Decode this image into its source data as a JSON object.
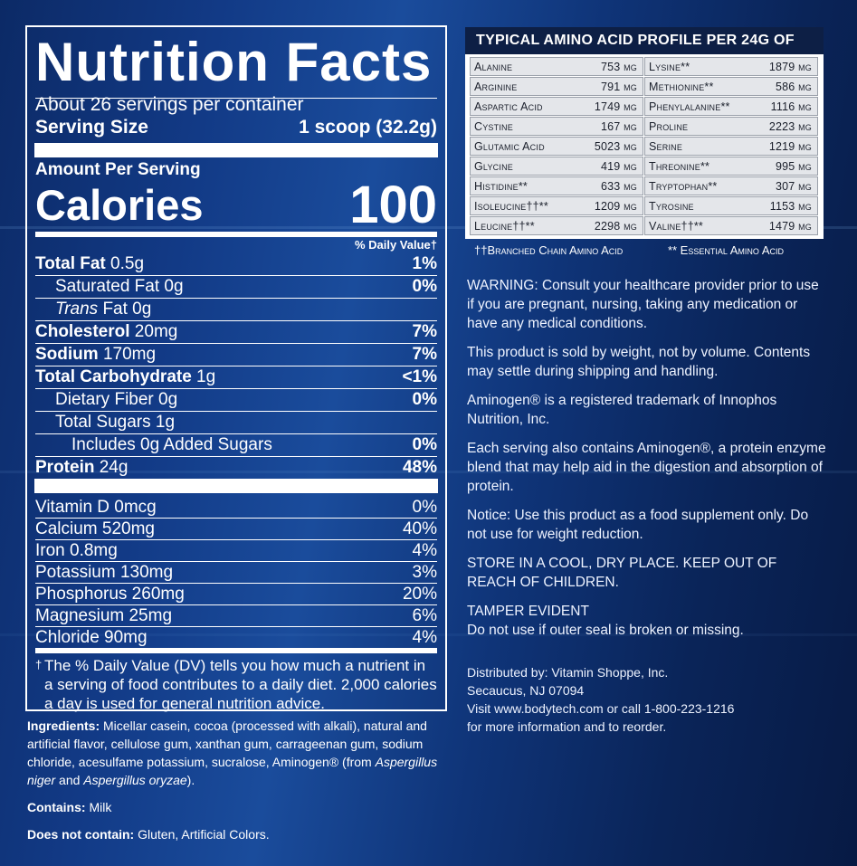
{
  "nutrition": {
    "title": "Nutrition Facts",
    "servings": "About 26 servings per container",
    "serving_size_label": "Serving Size",
    "serving_size_value": "1 scoop (32.2g)",
    "amount_per_serving": "Amount Per Serving",
    "calories_label": "Calories",
    "calories_value": "100",
    "dv_header": "% Daily Value†",
    "nutrients": [
      {
        "bold": "Total Fat",
        "amount": " 0.5g",
        "dv": "1%"
      },
      {
        "bold": "",
        "amount": "Saturated Fat 0g",
        "dv": "0%"
      },
      {
        "italic": "Trans",
        "amount": " Fat 0g",
        "dv": ""
      },
      {
        "bold": "Cholesterol",
        "amount": " 20mg",
        "dv": "7%"
      },
      {
        "bold": "Sodium",
        "amount": " 170mg",
        "dv": "7%"
      },
      {
        "bold": "Total Carbohydrate",
        "amount": " 1g",
        "dv": "<1%"
      },
      {
        "bold": "",
        "amount": "Dietary Fiber 0g",
        "dv": "0%"
      },
      {
        "bold": "",
        "amount": "Total Sugars 1g",
        "dv": ""
      },
      {
        "bold": "",
        "amount": "Includes 0g Added Sugars",
        "dv": "0%"
      },
      {
        "bold": "Protein",
        "amount": " 24g",
        "dv": "48%"
      }
    ],
    "vitamins": [
      {
        "label": "Vitamin D 0mcg",
        "dv": "0%"
      },
      {
        "label": "Calcium 520mg",
        "dv": "40%"
      },
      {
        "label": "Iron 0.8mg",
        "dv": "4%"
      },
      {
        "label": "Potassium 130mg",
        "dv": "3%"
      },
      {
        "label": "Phosphorus 260mg",
        "dv": "20%"
      },
      {
        "label": "Magnesium 25mg",
        "dv": "6%"
      },
      {
        "label": "Chloride 90mg",
        "dv": "4%"
      }
    ],
    "footnote_mark": "†",
    "footnote": "The % Daily Value (DV) tells you how much a nutrient in a serving of food contributes to a daily diet. 2,000 calories a day is used for general nutrition advice."
  },
  "ingredients": {
    "label": "Ingredients:",
    "text": " Micellar casein, cocoa (processed with alkali), natural and artificial flavor, cellulose gum, xanthan gum, carrageenan gum, sodium chloride, acesulfame potassium, sucralose, Aminogen® (from ",
    "italic1": "Aspergillus niger",
    "and": " and ",
    "italic2": "Aspergillus oryzae",
    "end": ").",
    "contains_label": "Contains:",
    "contains_value": " Milk",
    "not_contain_label": "Does not contain:",
    "not_contain_value": " Gluten, Artificial Colors."
  },
  "amino": {
    "title": "TYPICAL AMINO ACID PROFILE PER 24G OF PROTEIN",
    "rows": [
      [
        {
          "name": "Alanine",
          "val": "753 mg"
        },
        {
          "name": "Lysine**",
          "val": "1879 mg"
        }
      ],
      [
        {
          "name": "Arginine",
          "val": "791 mg"
        },
        {
          "name": "Methionine**",
          "val": "586 mg"
        }
      ],
      [
        {
          "name": "Aspartic Acid",
          "val": "1749 mg"
        },
        {
          "name": "Phenylalanine**",
          "val": "1116 mg"
        }
      ],
      [
        {
          "name": "Cystine",
          "val": "167 mg"
        },
        {
          "name": "Proline",
          "val": "2223 mg"
        }
      ],
      [
        {
          "name": "Glutamic Acid",
          "val": "5023 mg"
        },
        {
          "name": "Serine",
          "val": "1219 mg"
        }
      ],
      [
        {
          "name": "Glycine",
          "val": "419 mg"
        },
        {
          "name": "Threonine**",
          "val": "995 mg"
        }
      ],
      [
        {
          "name": "Histidine**",
          "val": "633 mg"
        },
        {
          "name": "Tryptophan**",
          "val": "307 mg"
        }
      ],
      [
        {
          "name": "Isoleucine††**",
          "val": "1209 mg"
        },
        {
          "name": "Tyrosine",
          "val": "1153 mg"
        }
      ],
      [
        {
          "name": "Leucine††**",
          "val": "2298 mg"
        },
        {
          "name": "Valine††**",
          "val": "1479 mg"
        }
      ]
    ],
    "foot_left": "††Branched Chain Amino Acid",
    "foot_right": "** Essential Amino Acid"
  },
  "notices": [
    "WARNING: Consult your healthcare provider prior to use if you are pregnant, nursing, taking any medication or have any medical conditions.",
    "This product is sold by weight, not by volume. Contents may settle during shipping and handling.",
    "Aminogen® is a registered trademark of Innophos Nutrition, Inc.",
    "Each serving also contains Aminogen®, a protein enzyme blend that may help aid in the digestion and absorption of protein.",
    "Notice: Use this product as a food supplement only. Do not use for weight reduction.",
    "STORE IN A COOL, DRY PLACE. KEEP OUT OF REACH OF CHILDREN.",
    "TAMPER EVIDENT\nDo not use if outer seal is broken or missing."
  ],
  "distributor": [
    "Distributed by: Vitamin Shoppe, Inc.",
    "Secaucus, NJ 07094",
    "Visit www.bodytech.com or call 1-800-223-1216",
    "for more information and to reorder."
  ]
}
